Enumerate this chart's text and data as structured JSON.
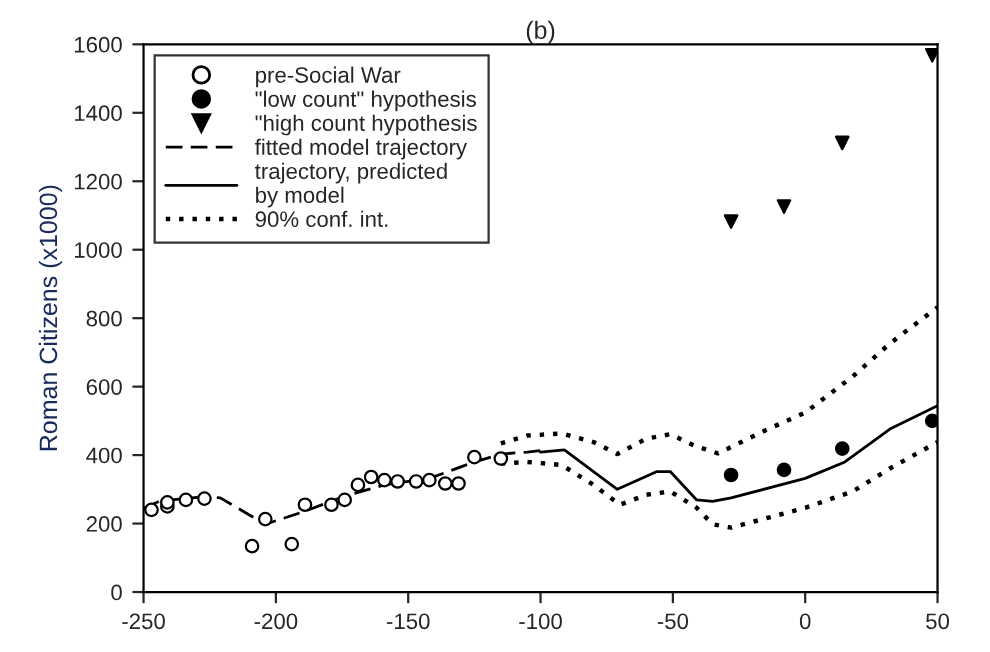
{
  "chart_data": {
    "type": "scatter",
    "title": "(b)",
    "ylabel": "Roman Citizens (x1000)",
    "xlim": [
      -250,
      50
    ],
    "xticks": [
      -250,
      -200,
      -150,
      -100,
      -50,
      0,
      50
    ],
    "ylim": [
      0,
      1600
    ],
    "yticks": [
      0,
      200,
      400,
      600,
      800,
      1000,
      1200,
      1400,
      1600
    ],
    "grid": false,
    "legend": "top left",
    "series": [
      {
        "name": "pre-Social War",
        "marker": "circle",
        "color": "#ffffff",
        "x": [
          -247,
          -241,
          -241,
          -234,
          -227,
          -209,
          -204,
          -194,
          -189,
          -179,
          -174,
          -169,
          -164,
          -159,
          -154,
          -147,
          -142,
          -136,
          -131,
          -125,
          -115
        ],
        "values": [
          240,
          250,
          262,
          269,
          273,
          134,
          213,
          140,
          255,
          255,
          269,
          313,
          336,
          327,
          323,
          323,
          327,
          317,
          317,
          394,
          390
        ]
      },
      {
        "name": "\"low count\" hypothesis",
        "marker": "circle",
        "color": "#000000",
        "x": [
          -28,
          -8,
          14,
          48
        ],
        "values": [
          342,
          357,
          419,
          500
        ]
      },
      {
        "name": "\"high count hypothesis",
        "marker": "triangle",
        "color": "#000000",
        "x": [
          -28,
          -8,
          14,
          48
        ],
        "values": [
          1082,
          1126,
          1312,
          1568
        ]
      },
      {
        "name": "fitted model trajectory",
        "type": "line",
        "line_style": "dashed",
        "color": "#000000",
        "x": [
          -250,
          -244,
          -227,
          -221,
          -204,
          -189,
          -174,
          -159,
          -142,
          -125,
          -115,
          -105,
          -100
        ],
        "values": [
          245,
          265,
          279,
          275,
          198,
          236,
          280,
          313,
          332,
          380,
          403,
          409,
          413
        ]
      },
      {
        "name": "trajectory, predicted\nby model",
        "type": "line",
        "line_style": "solid",
        "color": "#000000",
        "x": [
          -100,
          -91,
          -71,
          -56,
          -51,
          -41,
          -35,
          -28,
          0,
          15,
          32,
          50
        ],
        "values": [
          409,
          415,
          300,
          352,
          352,
          269,
          265,
          275,
          332,
          380,
          476,
          544
        ]
      },
      {
        "name": "90% conf. int.",
        "type": "line",
        "line_style": "dotted",
        "color": "#000000",
        "x": [
          -115,
          -105,
          -92,
          -80,
          -71,
          -60,
          -51,
          -42,
          -33,
          -14,
          0,
          18,
          32,
          50
        ],
        "values": [
          434,
          457,
          463,
          438,
          403,
          448,
          461,
          428,
          405,
          476,
          524,
          630,
          726,
          832
        ]
      },
      {
        "type": "line",
        "line_style": "dotted",
        "color": "#000000",
        "x": [
          -115,
          -105,
          -92,
          -80,
          -70,
          -60,
          -51,
          -41,
          -35,
          -28,
          0,
          18,
          32,
          50
        ],
        "values": [
          375,
          380,
          371,
          313,
          255,
          284,
          294,
          246,
          198,
          188,
          246,
          294,
          361,
          438
        ]
      }
    ]
  }
}
